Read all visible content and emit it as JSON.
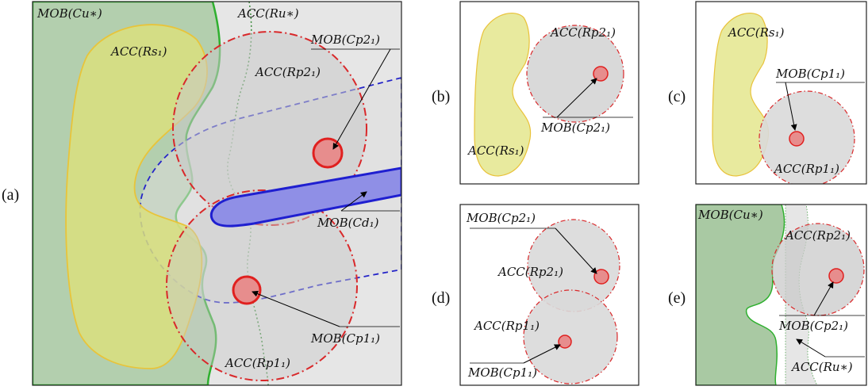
{
  "colors": {
    "mob_cu": "#b3cfae",
    "mob_cu_border": "#2f9e2f",
    "acc_rs": "#dde48a",
    "acc_rs_border": "#e9c23a",
    "acc_ru": "#e6e6e6",
    "acc_ru_border": "#4a9e4a",
    "acc_rp": "#d8d8d8",
    "acc_rp_border": "#d9282a",
    "mob_cp": "#e78d8d",
    "mob_cd": "#8f8fe6",
    "mob_cd_border": "#1f1fd0",
    "cd_swept": "#e8e8e8",
    "cd_swept_border": "#2424c8"
  },
  "panel_a": {
    "label": "(a)",
    "mob_cu": "MOB(Cu∗)",
    "acc_ru": "ACC(Ru∗)",
    "acc_rs": "ACC(Rs₁)",
    "mob_cp2": "MOB(Cp2₁)",
    "acc_rp2": "ACC(Rp2₁)",
    "mob_cd": "MOB(Cd₁)",
    "mob_cp1": "MOB(Cp1₁)",
    "acc_rp1": "ACC(Rp1₁)"
  },
  "panel_b": {
    "label": "(b)",
    "acc_rp2": "ACC(Rp2₁)",
    "mob_cp2": "MOB(Cp2₁)",
    "acc_rs": "ACC(Rs₁)"
  },
  "panel_c": {
    "label": "(c)",
    "acc_rs": "ACC(Rs₁)",
    "mob_cp1": "MOB(Cp1₁)",
    "acc_rp1": "ACC(Rp1₁)"
  },
  "panel_d": {
    "label": "(d)",
    "mob_cp2": "MOB(Cp2₁)",
    "acc_rp2": "ACC(Rp2₁)",
    "acc_rp1": "ACC(Rp1₁)",
    "mob_cp1": "MOB(Cp1₁)"
  },
  "panel_e": {
    "label": "(e)",
    "mob_cu": "MOB(Cu∗)",
    "acc_rp2": "ACC(Rp2₁)",
    "mob_cp2": "MOB(Cp2₁)",
    "acc_ru": "ACC(Ru∗)"
  }
}
